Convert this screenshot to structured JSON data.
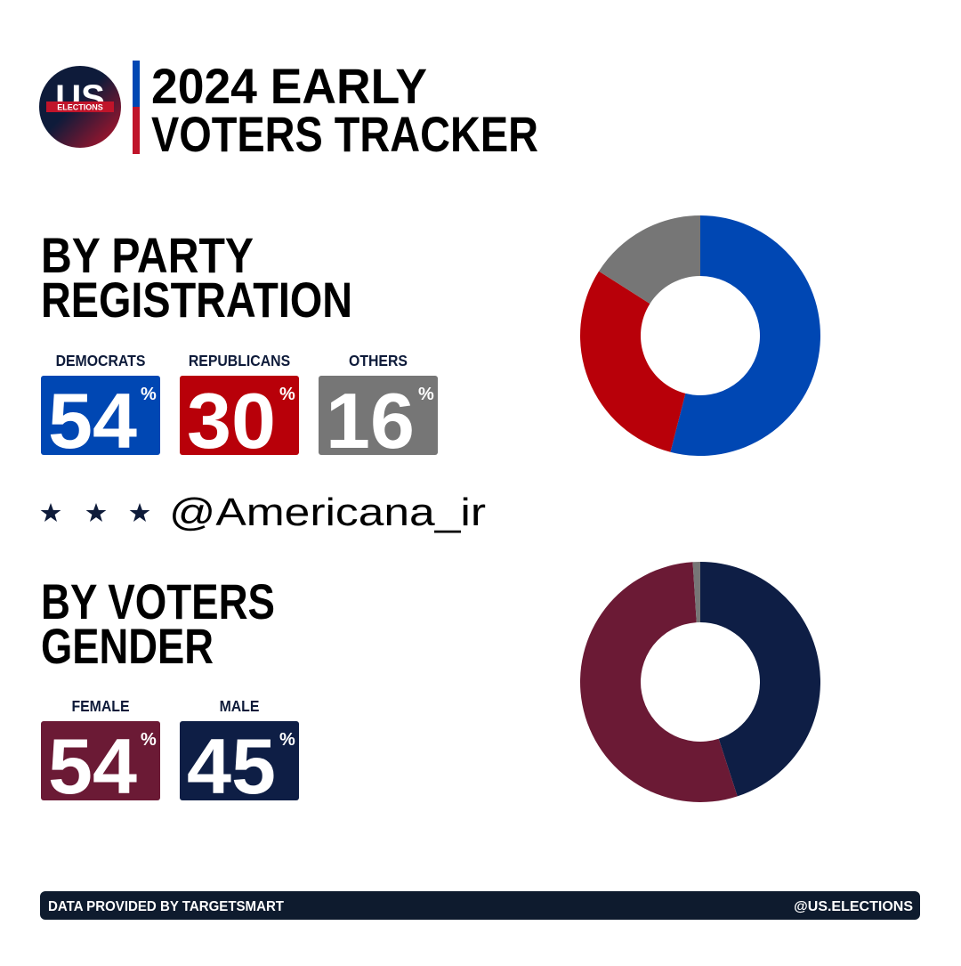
{
  "header": {
    "logo_main": "US",
    "logo_sub": "ELECTIONS",
    "title_lines": [
      "2024 EARLY",
      "VOTERS TRACKER"
    ]
  },
  "chart_data": [
    {
      "type": "pie",
      "donut": true,
      "title_lines": [
        "BY PARTY",
        "REGISTRATION"
      ],
      "categories": [
        "DEMOCRATS",
        "REPUBLICANS",
        "OTHERS"
      ],
      "values": [
        54,
        30,
        16
      ],
      "unit": "%",
      "colors": [
        "#0047b3",
        "#b80009",
        "#767676"
      ]
    },
    {
      "type": "pie",
      "donut": true,
      "title_lines": [
        "BY VOTERS",
        "GENDER"
      ],
      "categories": [
        "FEMALE",
        "MALE",
        null
      ],
      "values": [
        54,
        45,
        1
      ],
      "unit": "%",
      "colors": [
        "#6b1a35",
        "#0e1e45",
        "#767676"
      ]
    }
  ],
  "watermark": "@Americana_ir",
  "footer": {
    "left": "DATA PROVIDED BY TARGETSMART",
    "right": "@US.ELECTIONS"
  }
}
